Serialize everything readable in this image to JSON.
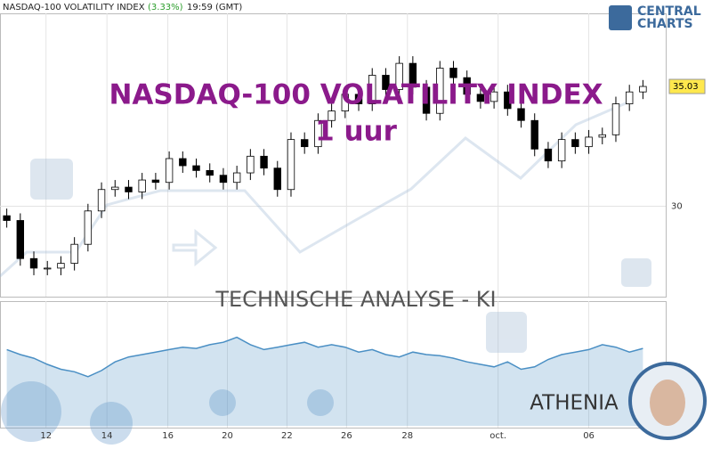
{
  "header": {
    "title": "NASDAQ-100 VOLATILITY INDEX",
    "change": "(3.33%)",
    "time": "19:59 (GMT)"
  },
  "logo": {
    "line1": "CENTRAL",
    "line2": "CHARTS"
  },
  "chart_data": {
    "type": "candlestick",
    "watermark_title": "NASDAQ-100 VOLATILITY INDEX",
    "watermark_interval": "1 uur",
    "ylim": [
      26.2,
      38.1
    ],
    "yticks": [
      30
    ],
    "xlim": [
      -0.5,
      47.5
    ],
    "xticks": [
      {
        "value": 2.9,
        "label": "12"
      },
      {
        "value": 7.4,
        "label": "14"
      },
      {
        "value": 11.9,
        "label": "16"
      },
      {
        "value": 16.3,
        "label": "20"
      },
      {
        "value": 20.7,
        "label": "22"
      },
      {
        "value": 25.1,
        "label": "26"
      },
      {
        "value": 29.6,
        "label": "28"
      },
      {
        "value": 36.3,
        "label": "oct."
      },
      {
        "value": 43.0,
        "label": "06"
      }
    ],
    "open": [
      29.6,
      29.4,
      27.8,
      27.4,
      27.4,
      27.6,
      28.4,
      29.8,
      30.7,
      30.8,
      30.6,
      31.1,
      31.0,
      32.0,
      31.7,
      31.5,
      31.3,
      31.0,
      31.4,
      32.1,
      31.6,
      30.7,
      32.8,
      32.5,
      33.6,
      34.0,
      34.7,
      34.3,
      35.5,
      34.9,
      36.0,
      35.0,
      33.9,
      35.8,
      35.4,
      34.7,
      34.4,
      34.8,
      34.1,
      33.6,
      32.4,
      31.9,
      32.8,
      32.5,
      32.9,
      33.0,
      34.3,
      34.8
    ],
    "high": [
      29.9,
      29.7,
      28.1,
      27.7,
      27.9,
      28.7,
      30.1,
      31.0,
      31.1,
      31.1,
      31.4,
      31.4,
      32.3,
      32.3,
      32.0,
      31.8,
      31.6,
      31.7,
      32.4,
      32.4,
      31.9,
      33.1,
      33.1,
      33.9,
      34.3,
      35.0,
      35.0,
      35.8,
      35.8,
      36.3,
      36.3,
      35.3,
      36.1,
      36.1,
      35.7,
      35.0,
      35.1,
      35.1,
      34.4,
      33.9,
      32.7,
      33.1,
      33.1,
      33.2,
      33.3,
      34.6,
      35.1,
      35.3
    ],
    "low": [
      29.1,
      27.5,
      27.1,
      27.1,
      27.1,
      27.3,
      28.1,
      29.5,
      30.4,
      30.3,
      30.3,
      30.7,
      30.7,
      31.4,
      31.2,
      31.0,
      30.7,
      30.7,
      31.1,
      31.3,
      30.4,
      30.4,
      32.2,
      32.2,
      33.3,
      33.7,
      34.0,
      34.0,
      34.6,
      34.6,
      34.7,
      33.6,
      33.6,
      35.1,
      34.4,
      34.1,
      34.1,
      33.8,
      33.3,
      32.1,
      31.6,
      31.6,
      32.2,
      32.2,
      32.6,
      32.7,
      34.0,
      34.5
    ],
    "close": [
      29.4,
      27.8,
      27.4,
      27.4,
      27.6,
      28.4,
      29.8,
      30.7,
      30.8,
      30.6,
      31.1,
      31.0,
      32.0,
      31.7,
      31.5,
      31.3,
      31.0,
      31.4,
      32.1,
      31.6,
      30.7,
      32.8,
      32.5,
      33.6,
      34.0,
      34.7,
      34.3,
      35.5,
      34.9,
      36.0,
      35.0,
      33.9,
      35.8,
      35.4,
      34.7,
      34.4,
      34.8,
      34.1,
      33.6,
      32.4,
      31.9,
      32.8,
      32.5,
      32.9,
      33.0,
      34.3,
      34.8,
      35.03
    ],
    "up_color": "#ffffff",
    "down_color": "#000000",
    "grid": true
  },
  "indicator": {
    "type": "area",
    "ylim": [
      0,
      100
    ],
    "color": "#4a8fc4",
    "values": [
      62,
      58,
      55,
      50,
      46,
      44,
      40,
      45,
      52,
      56,
      58,
      60,
      62,
      64,
      63,
      66,
      68,
      72,
      66,
      62,
      64,
      66,
      68,
      64,
      66,
      64,
      60,
      62,
      58,
      56,
      60,
      58,
      57,
      55,
      52,
      50,
      48,
      52,
      46,
      48,
      54,
      58,
      60,
      62,
      66,
      64,
      60,
      63
    ]
  },
  "footer": {
    "banner": "TECHNISCHE ANALYSE - KI",
    "brand": "ATHENIA"
  }
}
